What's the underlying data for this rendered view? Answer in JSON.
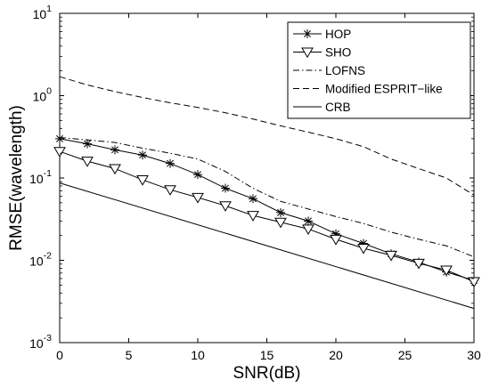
{
  "chart_data": {
    "type": "line",
    "title": "",
    "xlabel": "SNR(dB)",
    "ylabel": "RMSE(wavelength)",
    "xlim": [
      0,
      30
    ],
    "ylim": [
      0.001,
      10
    ],
    "yscale": "log",
    "grid": false,
    "legend_position": "top-right",
    "x_ticks": [
      {
        "value": 0,
        "label": "0"
      },
      {
        "value": 5,
        "label": "5"
      },
      {
        "value": 10,
        "label": "10"
      },
      {
        "value": 15,
        "label": "15"
      },
      {
        "value": 20,
        "label": "20"
      },
      {
        "value": 25,
        "label": "25"
      },
      {
        "value": 30,
        "label": "30"
      }
    ],
    "y_ticks": [
      {
        "value": 0.001,
        "base": "10",
        "exp": "-3"
      },
      {
        "value": 0.01,
        "base": "10",
        "exp": "-2"
      },
      {
        "value": 0.1,
        "base": "10",
        "exp": "-1"
      },
      {
        "value": 1,
        "base": "10",
        "exp": "0"
      },
      {
        "value": 10,
        "base": "10",
        "exp": "1"
      }
    ],
    "series": [
      {
        "name": "HOP",
        "style": "solid",
        "marker": "asterisk",
        "x": [
          0,
          2,
          4,
          6,
          8,
          10,
          12,
          14,
          16,
          18,
          20,
          22,
          24,
          26,
          28,
          30
        ],
        "y": [
          0.3,
          0.26,
          0.22,
          0.19,
          0.15,
          0.11,
          0.075,
          0.056,
          0.038,
          0.03,
          0.021,
          0.016,
          0.012,
          0.0095,
          0.0072,
          0.0057
        ]
      },
      {
        "name": "SHO",
        "style": "solid",
        "marker": "triangle-down",
        "x": [
          0,
          2,
          4,
          6,
          8,
          10,
          12,
          14,
          16,
          18,
          20,
          22,
          24,
          26,
          28,
          30
        ],
        "y": [
          0.21,
          0.16,
          0.13,
          0.095,
          0.072,
          0.058,
          0.046,
          0.035,
          0.029,
          0.024,
          0.018,
          0.014,
          0.0115,
          0.0092,
          0.0076,
          0.0055
        ]
      },
      {
        "name": "LOFNS",
        "style": "dashdot",
        "marker": "none",
        "x": [
          0,
          2,
          4,
          6,
          8,
          10,
          12,
          14,
          16,
          18,
          20,
          22,
          24,
          26,
          28,
          30
        ],
        "y": [
          0.31,
          0.29,
          0.27,
          0.23,
          0.2,
          0.17,
          0.12,
          0.075,
          0.052,
          0.042,
          0.034,
          0.028,
          0.022,
          0.018,
          0.015,
          0.011
        ]
      },
      {
        "name": "Modified ESPRIT−like",
        "style": "dashed",
        "marker": "none",
        "x": [
          0,
          2,
          4,
          6,
          8,
          10,
          12,
          14,
          16,
          18,
          20,
          22,
          24,
          26,
          28,
          30
        ],
        "y": [
          1.7,
          1.35,
          1.12,
          0.95,
          0.82,
          0.72,
          0.62,
          0.52,
          0.43,
          0.36,
          0.3,
          0.24,
          0.17,
          0.13,
          0.1,
          0.062
        ]
      },
      {
        "name": "CRB",
        "style": "solid",
        "marker": "none",
        "x": [
          0,
          30
        ],
        "y": [
          0.087,
          0.0026
        ]
      }
    ]
  }
}
